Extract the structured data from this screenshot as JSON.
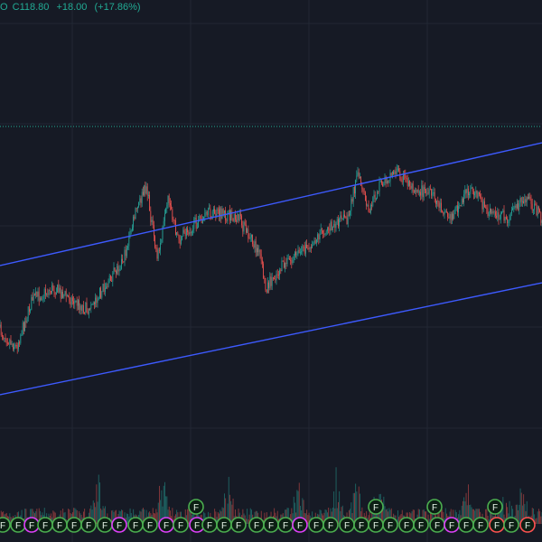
{
  "header": {
    "ohlc_prefix": "O",
    "close_text": "C118.80",
    "change_text": "+18.00",
    "change_pct_text": "(+17.86%)",
    "text_color": "#22ab94"
  },
  "colors": {
    "background": "#161a25",
    "grid": "#222733",
    "up": "#26a69a",
    "down": "#ef5350",
    "channel": "#3d5afe",
    "price_line": "#22ab94",
    "marker_green": "#4caf50",
    "marker_pink": "#e040fb",
    "marker_red": "#ff5252"
  },
  "markers": {
    "label": "F",
    "icon": "earnings-flag-icon"
  },
  "chart_data": {
    "type": "candlestick",
    "note_level": "horizontal dotted price line",
    "channel": "ascending parallel channel",
    "price_path": [
      [
        0,
        0.7
      ],
      [
        0.03,
        0.73
      ],
      [
        0.06,
        0.64
      ],
      [
        0.1,
        0.62
      ],
      [
        0.16,
        0.66
      ],
      [
        0.2,
        0.61
      ],
      [
        0.23,
        0.56
      ],
      [
        0.25,
        0.48
      ],
      [
        0.27,
        0.43
      ],
      [
        0.29,
        0.57
      ],
      [
        0.31,
        0.46
      ],
      [
        0.33,
        0.53
      ],
      [
        0.36,
        0.5
      ],
      [
        0.39,
        0.48
      ],
      [
        0.44,
        0.49
      ],
      [
        0.48,
        0.56
      ],
      [
        0.49,
        0.62
      ],
      [
        0.52,
        0.58
      ],
      [
        0.56,
        0.55
      ],
      [
        0.6,
        0.51
      ],
      [
        0.64,
        0.49
      ],
      [
        0.66,
        0.41
      ],
      [
        0.68,
        0.48
      ],
      [
        0.7,
        0.43
      ],
      [
        0.73,
        0.4
      ],
      [
        0.76,
        0.43
      ],
      [
        0.8,
        0.45
      ],
      [
        0.83,
        0.49
      ],
      [
        0.87,
        0.43
      ],
      [
        0.9,
        0.48
      ],
      [
        0.94,
        0.49
      ],
      [
        0.97,
        0.45
      ],
      [
        1.0,
        0.49
      ]
    ],
    "volume_spikes": [
      0.18,
      0.3,
      0.42,
      0.55,
      0.62,
      0.66,
      0.7,
      0.86,
      0.93,
      0.96
    ]
  }
}
